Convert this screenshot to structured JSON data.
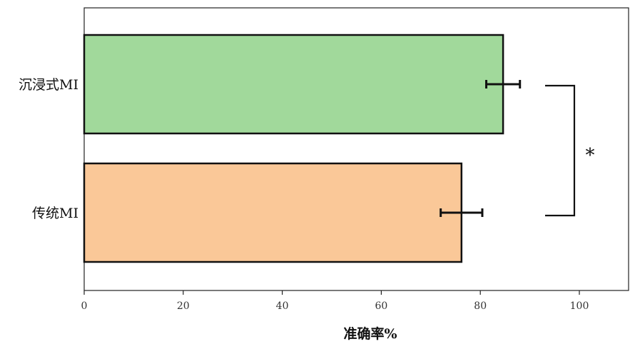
{
  "chart_data": {
    "type": "bar",
    "orientation": "horizontal",
    "categories": [
      "沉浸式MI",
      "传统MI"
    ],
    "values": [
      84.6,
      76.2
    ],
    "errors": [
      3.4,
      4.2
    ],
    "colors": [
      "#a1d99b",
      "#fac898"
    ],
    "title": "",
    "xlabel": "准确率%",
    "ylabel": "",
    "xlim": [
      0,
      100
    ],
    "xticks": [
      0,
      20,
      40,
      60,
      80,
      100
    ],
    "xtick_labels": [
      "0",
      "20",
      "40",
      "60",
      "80",
      "100"
    ],
    "grid": false,
    "legend": "none",
    "significance": {
      "between": [
        0,
        1
      ],
      "label": "*"
    }
  }
}
